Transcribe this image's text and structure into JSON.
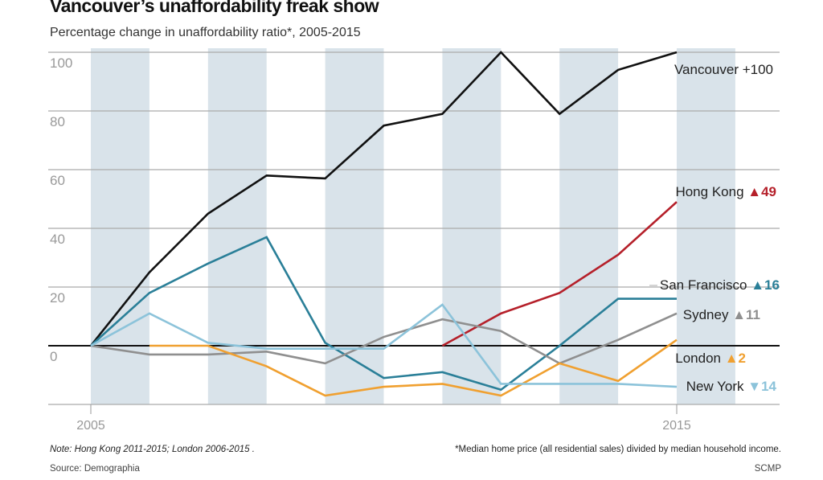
{
  "chart_data": {
    "type": "line",
    "title": "Vancouver’s unaffordability freak show",
    "subtitle": "Percentage change in unaffordability ratio*, 2005-2015",
    "x": [
      2005,
      2006,
      2007,
      2008,
      2009,
      2010,
      2011,
      2012,
      2013,
      2014,
      2015
    ],
    "xticks": [
      "2005",
      "2015"
    ],
    "yticks": [
      "100",
      "80",
      "60",
      "40",
      "20",
      "0"
    ],
    "ylim": [
      -20,
      100
    ],
    "grid": true,
    "series": [
      {
        "name": "Vancouver",
        "label": "+100",
        "marker": "",
        "color": "#111111",
        "values": [
          0,
          25,
          45,
          58,
          57,
          75,
          79,
          100,
          79,
          94,
          100
        ]
      },
      {
        "name": "Hong Kong",
        "label": "49",
        "marker": "▲",
        "color": "#b5202a",
        "values": [
          null,
          null,
          null,
          null,
          null,
          null,
          0,
          11,
          18,
          31,
          49
        ]
      },
      {
        "name": "San Francisco",
        "label": "16",
        "marker": "▲",
        "color": "#2a7f98",
        "values": [
          0,
          18,
          28,
          37,
          1,
          -11,
          -9,
          -15,
          0,
          16,
          16
        ]
      },
      {
        "name": "Sydney",
        "label": "11",
        "marker": "▲",
        "color": "#8f8f8f",
        "values": [
          0,
          -3,
          -3,
          -2,
          -6,
          3,
          9,
          5,
          -6,
          2,
          11
        ]
      },
      {
        "name": "London",
        "label": "2",
        "marker": "▲",
        "color": "#f0a030",
        "values": [
          null,
          0,
          0,
          -7,
          -17,
          -14,
          -13,
          -17,
          -6,
          -12,
          2
        ]
      },
      {
        "name": "New York",
        "label": "14",
        "marker": "▼",
        "color": "#8cc3da",
        "values": [
          0,
          11,
          1,
          -1,
          -1,
          -1,
          14,
          -13,
          -13,
          -13,
          -14
        ]
      }
    ]
  },
  "notes": {
    "left": "Note: Hong Kong 2011-2015; London 2006-2015 .",
    "right": "*Median home price (all residential sales) divided by median household income.",
    "source": "Source: Demographia",
    "credit": "SCMP"
  }
}
